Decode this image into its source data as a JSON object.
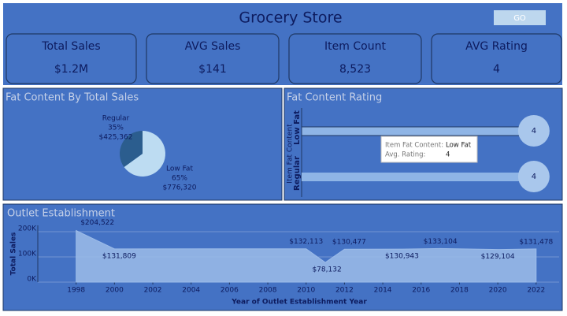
{
  "header": {
    "title": "Grocery Store",
    "button": "GO"
  },
  "kpis": [
    {
      "label": "Total Sales",
      "value": "$1.2M"
    },
    {
      "label": "AVG Sales",
      "value": "$141"
    },
    {
      "label": "Item Count",
      "value": "8,523"
    },
    {
      "label": "AVG Rating",
      "value": "4"
    }
  ],
  "chart_data": [
    {
      "type": "pie",
      "title": "Fat Content By Total Sales",
      "categories": [
        "Regular",
        "Low Fat"
      ],
      "values": [
        35,
        65
      ],
      "value_labels": [
        "35%",
        "65%"
      ],
      "amount_labels": [
        "$425,362",
        "$776,320"
      ],
      "colors": [
        "#2b5d8e",
        "#bddcf2"
      ]
    },
    {
      "type": "bar",
      "title": "Fat Content Rating",
      "y_label": "Item Fat Content",
      "categories": [
        "Low Fat",
        "Regular"
      ],
      "values": [
        4,
        4
      ],
      "xlim": [
        0,
        4.3
      ],
      "color": "#8fb5e6",
      "tooltip": {
        "field_label": "Item Fat Content:",
        "field_value": "Low Fat",
        "measure_label": "Avg. Rating:",
        "measure_value": "4"
      }
    },
    {
      "type": "area",
      "title": "Outlet Establishment",
      "x_label": "Year of Outlet Establishment Year",
      "y_label": "Total Sales",
      "x": [
        1998,
        2000,
        2010,
        2011,
        2012,
        2015,
        2017,
        2020,
        2022
      ],
      "values": [
        204522,
        131809,
        132113,
        78132,
        130477,
        130943,
        133104,
        129104,
        131478
      ],
      "value_labels": [
        "$204,522",
        "$131,809",
        "$132,113",
        "$78,132",
        "$130,477",
        "$130,943",
        "$133,104",
        "$129,104",
        "$131,478"
      ],
      "xlim": [
        1996,
        2023.2
      ],
      "ylim": [
        0,
        225000
      ],
      "xticks": [
        1998,
        2000,
        2002,
        2004,
        2006,
        2008,
        2010,
        2012,
        2014,
        2016,
        2018,
        2020,
        2022
      ],
      "yticks": [
        {
          "value": 0,
          "label": "0K"
        },
        {
          "value": 100000,
          "label": "100K"
        },
        {
          "value": 200000,
          "label": "200K"
        }
      ],
      "grid": true,
      "color": "#9cbce9"
    }
  ]
}
